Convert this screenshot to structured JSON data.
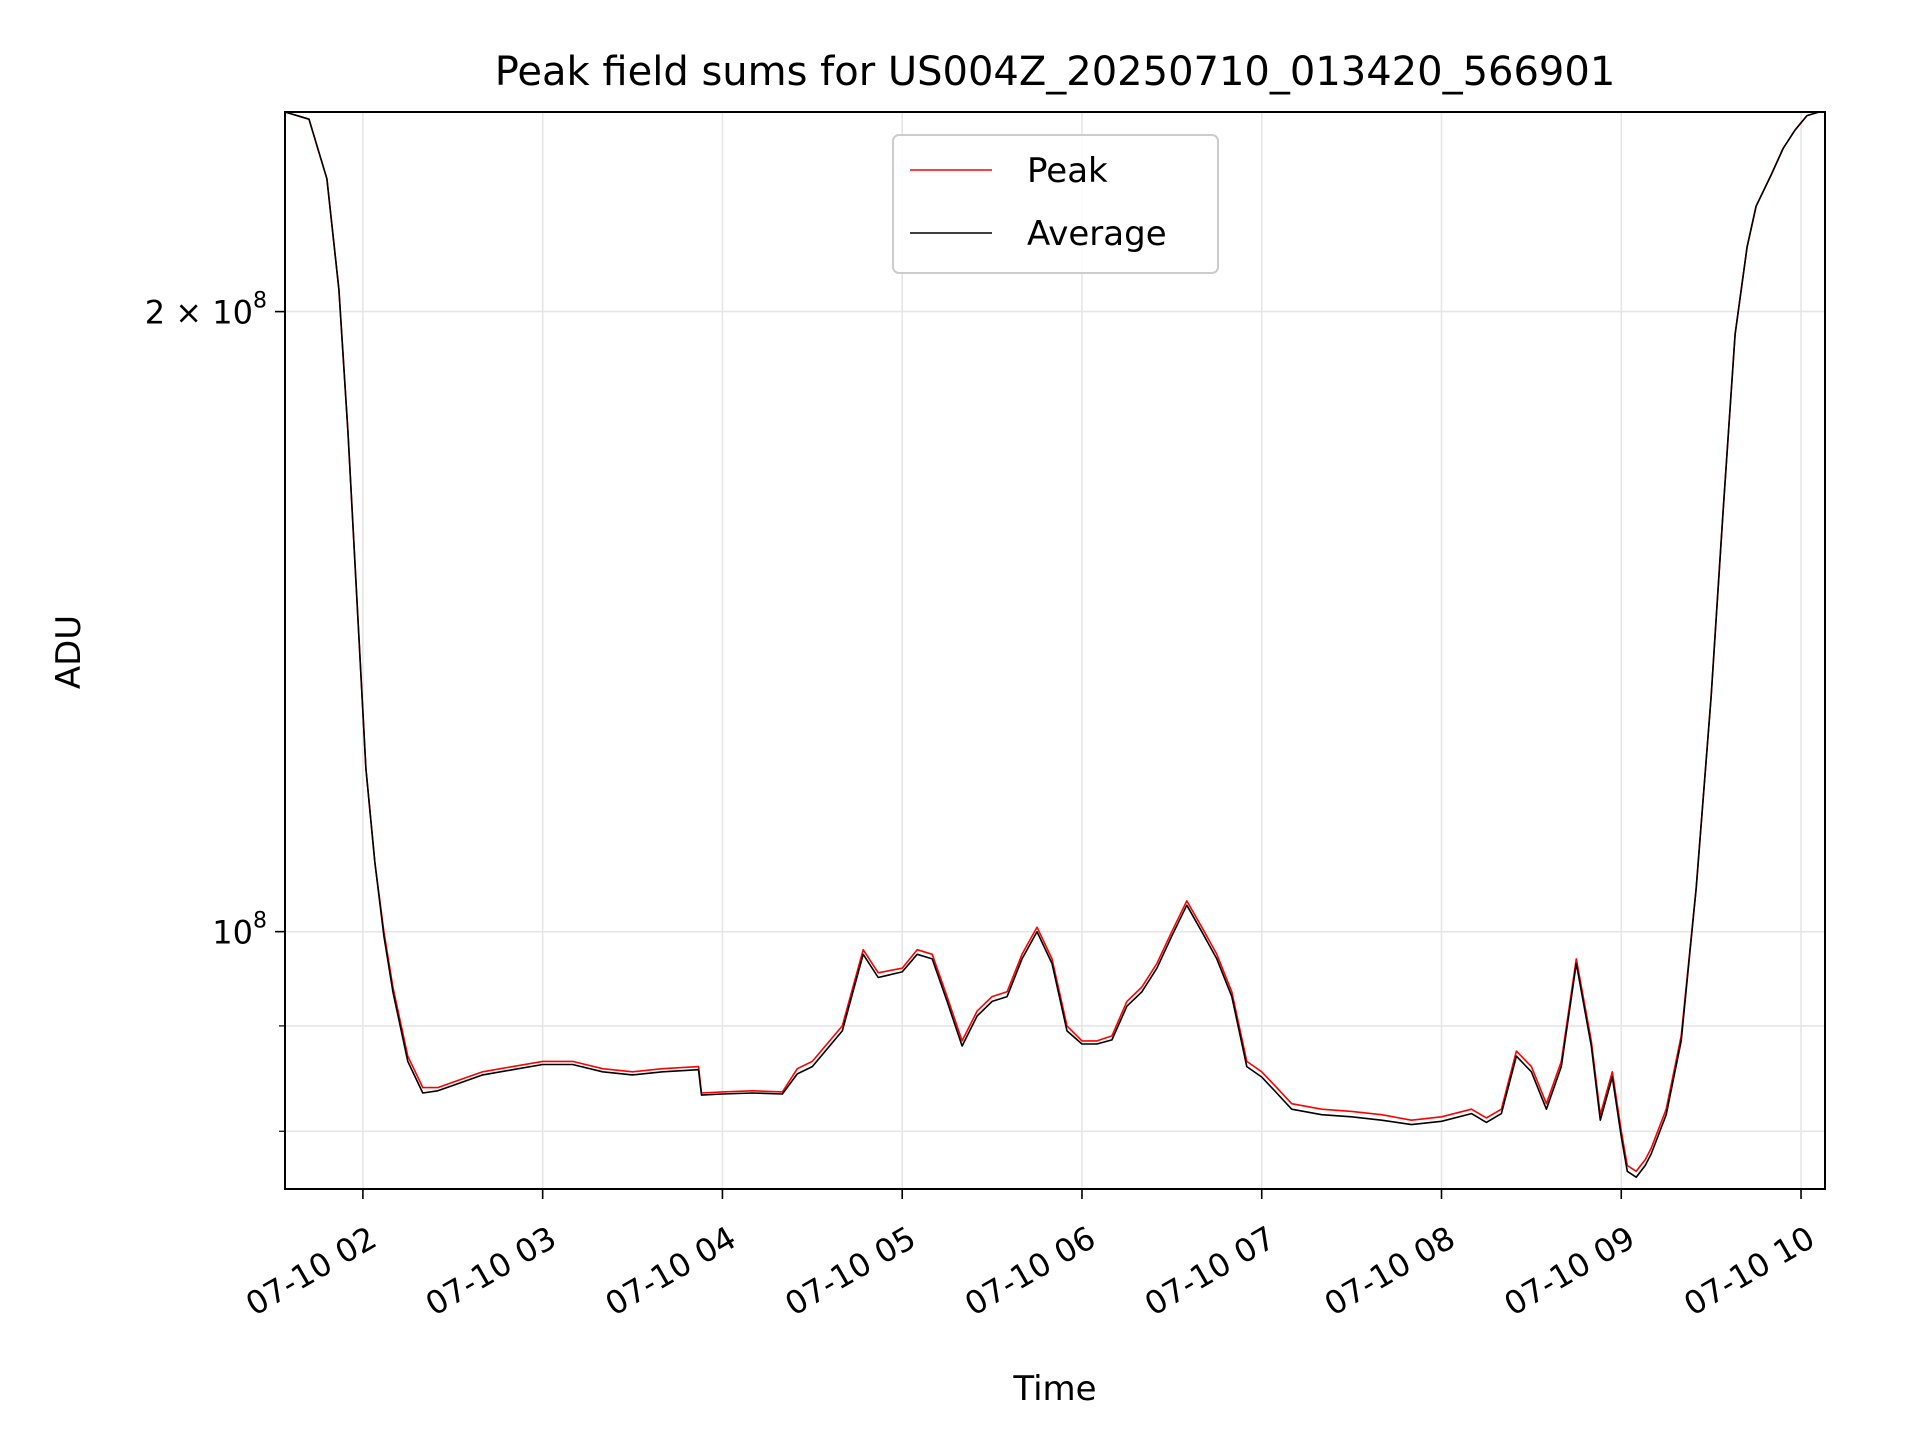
{
  "chart_data": {
    "type": "line",
    "title": "Peak field sums for US004Z_20250710_013420_566901",
    "xlabel": "Time",
    "ylabel": "ADU",
    "y_scale": "log",
    "grid": true,
    "legend_position": "top-center",
    "xlim": [
      "2025-07-10 01:34",
      "2025-07-10 10:08"
    ],
    "ylim": [
      75000000,
      250000000
    ],
    "x_ticks": [
      "07-10 02",
      "07-10 03",
      "07-10 04",
      "07-10 05",
      "07-10 06",
      "07-10 07",
      "07-10 08",
      "07-10 09",
      "07-10 10"
    ],
    "y_ticks_labeled": [
      {
        "value": 200000000,
        "base": "2 × 10",
        "exp": "8"
      },
      {
        "value": 100000000,
        "base": "10",
        "exp": "8"
      }
    ],
    "y_ticks_minor": [
      80000000,
      90000000
    ],
    "series": [
      {
        "name": "Peak",
        "color": "#ff0000",
        "x": [
          "01:34",
          "01:42",
          "01:48",
          "01:52",
          "01:55",
          "01:58",
          "02:01",
          "02:04",
          "02:07",
          "02:10",
          "02:15",
          "02:20",
          "02:25",
          "02:30",
          "02:40",
          "02:50",
          "03:00",
          "03:10",
          "03:20",
          "03:30",
          "03:40",
          "03:52",
          "03:53",
          "04:00",
          "04:10",
          "04:20",
          "04:25",
          "04:30",
          "04:40",
          "04:47",
          "04:52",
          "05:00",
          "05:05",
          "05:10",
          "05:15",
          "05:20",
          "05:25",
          "05:30",
          "05:35",
          "05:40",
          "05:45",
          "05:50",
          "05:55",
          "06:00",
          "06:05",
          "06:10",
          "06:15",
          "06:20",
          "06:25",
          "06:30",
          "06:35",
          "06:40",
          "06:45",
          "06:50",
          "06:55",
          "07:00",
          "07:05",
          "07:10",
          "07:20",
          "07:30",
          "07:40",
          "07:50",
          "08:00",
          "08:10",
          "08:15",
          "08:20",
          "08:25",
          "08:30",
          "08:35",
          "08:40",
          "08:45",
          "08:50",
          "08:53",
          "08:57",
          "09:00",
          "09:02",
          "09:05",
          "09:08",
          "09:10",
          "09:15",
          "09:20",
          "09:25",
          "09:30",
          "09:34",
          "09:38",
          "09:42",
          "09:45",
          "09:50",
          "09:54",
          "09:58",
          "10:02",
          "10:06"
        ],
        "y": [
          250000000,
          248000000,
          232000000,
          205000000,
          175000000,
          145000000,
          120000000,
          108000000,
          100000000,
          94000000,
          87000000,
          84000000,
          84000000,
          84500000,
          85500000,
          86000000,
          86500000,
          86500000,
          85800000,
          85500000,
          85800000,
          86000000,
          83500000,
          83600000,
          83700000,
          83600000,
          85800000,
          86500000,
          90000000,
          98000000,
          95500000,
          96000000,
          98000000,
          97500000,
          93000000,
          88500000,
          91500000,
          93000000,
          93500000,
          97500000,
          100500000,
          97000000,
          90000000,
          88500000,
          88500000,
          89000000,
          92500000,
          94000000,
          96500000,
          100000000,
          103500000,
          100500000,
          97500000,
          93500000,
          86500000,
          85500000,
          84000000,
          82500000,
          82000000,
          81800000,
          81500000,
          81000000,
          81300000,
          82000000,
          81200000,
          82000000,
          87500000,
          86000000,
          82500000,
          86500000,
          97000000,
          88500000,
          81500000,
          85500000,
          80000000,
          77000000,
          76500000,
          77500000,
          78500000,
          82000000,
          89000000,
          105000000,
          130000000,
          160000000,
          195000000,
          215000000,
          225000000,
          233000000,
          240000000,
          245000000,
          249000000,
          250000000
        ]
      },
      {
        "name": "Average",
        "color": "#000000",
        "x": [
          "01:34",
          "01:42",
          "01:48",
          "01:52",
          "01:55",
          "01:58",
          "02:01",
          "02:04",
          "02:07",
          "02:10",
          "02:15",
          "02:20",
          "02:25",
          "02:30",
          "02:40",
          "02:50",
          "03:00",
          "03:10",
          "03:20",
          "03:30",
          "03:40",
          "03:52",
          "03:53",
          "04:00",
          "04:10",
          "04:20",
          "04:25",
          "04:30",
          "04:40",
          "04:47",
          "04:52",
          "05:00",
          "05:05",
          "05:10",
          "05:15",
          "05:20",
          "05:25",
          "05:30",
          "05:35",
          "05:40",
          "05:45",
          "05:50",
          "05:55",
          "06:00",
          "06:05",
          "06:10",
          "06:15",
          "06:20",
          "06:25",
          "06:30",
          "06:35",
          "06:40",
          "06:45",
          "06:50",
          "06:55",
          "07:00",
          "07:05",
          "07:10",
          "07:20",
          "07:30",
          "07:40",
          "07:50",
          "08:00",
          "08:10",
          "08:15",
          "08:20",
          "08:25",
          "08:30",
          "08:35",
          "08:40",
          "08:45",
          "08:50",
          "08:53",
          "08:57",
          "09:00",
          "09:02",
          "09:05",
          "09:08",
          "09:10",
          "09:15",
          "09:20",
          "09:25",
          "09:30",
          "09:34",
          "09:38",
          "09:42",
          "09:45",
          "09:50",
          "09:54",
          "09:58",
          "10:02",
          "10:06"
        ],
        "y": [
          250000000,
          248000000,
          232000000,
          205000000,
          175000000,
          145000000,
          120000000,
          108000000,
          99500000,
          93500000,
          86500000,
          83500000,
          83700000,
          84200000,
          85200000,
          85700000,
          86200000,
          86200000,
          85500000,
          85200000,
          85500000,
          85700000,
          83300000,
          83400000,
          83500000,
          83400000,
          85300000,
          86000000,
          89500000,
          97500000,
          95000000,
          95600000,
          97500000,
          97000000,
          92500000,
          88000000,
          91000000,
          92500000,
          93000000,
          97000000,
          100000000,
          96500000,
          89500000,
          88200000,
          88200000,
          88600000,
          92000000,
          93500000,
          96000000,
          99500000,
          103000000,
          100000000,
          97000000,
          93000000,
          86000000,
          85000000,
          83500000,
          82000000,
          81500000,
          81300000,
          81000000,
          80600000,
          80900000,
          81600000,
          80800000,
          81600000,
          87000000,
          85500000,
          82000000,
          86000000,
          96500000,
          88000000,
          81000000,
          85000000,
          79500000,
          76500000,
          76000000,
          77000000,
          78000000,
          81500000,
          88500000,
          105000000,
          130000000,
          160000000,
          195000000,
          215000000,
          225000000,
          233000000,
          240000000,
          245000000,
          249000000,
          250000000
        ]
      }
    ]
  }
}
